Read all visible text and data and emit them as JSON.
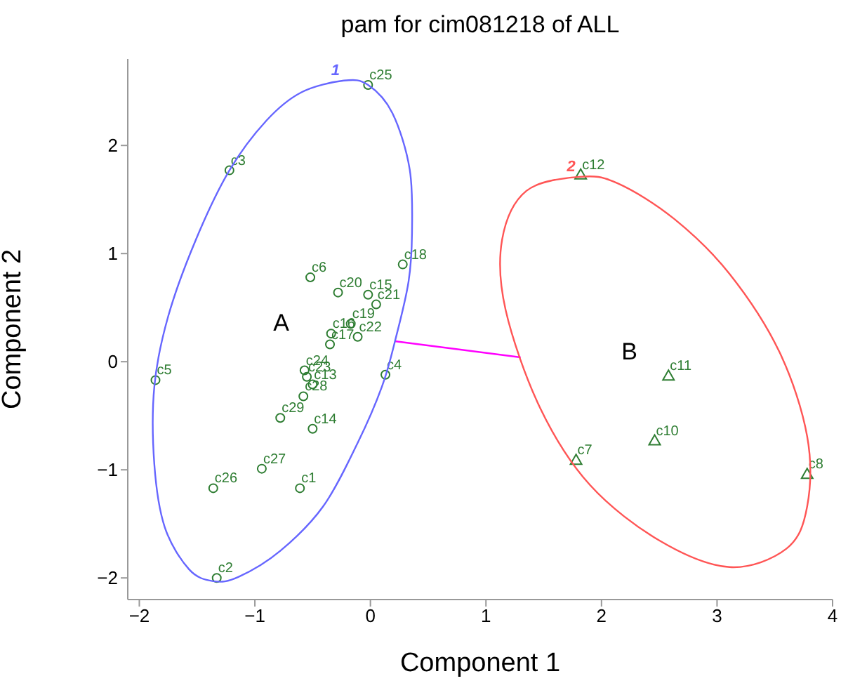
{
  "chart_data": {
    "type": "scatter",
    "title": "pam for cim081218 of ALL",
    "xlabel": "Component 1",
    "ylabel": "Component 2",
    "xlim": [
      -2.1,
      4.0
    ],
    "ylim": [
      -2.2,
      2.8
    ],
    "xticks": [
      -2,
      -1,
      0,
      1,
      2,
      3,
      4
    ],
    "yticks": [
      -2,
      -1,
      0,
      1,
      2
    ],
    "grid": false,
    "legend": false,
    "annotations": [
      "A",
      "B",
      "1",
      "2"
    ],
    "series": [
      {
        "marker": "circle",
        "color": "#2e7d32",
        "x": [
          -0.02,
          -1.22,
          0.28,
          -0.52,
          -0.28,
          -0.02,
          0.05,
          -0.17,
          -0.11,
          -0.34,
          -0.35,
          0.13,
          -1.86,
          -0.57,
          -0.55,
          -0.5,
          -0.58,
          -0.78,
          -0.5,
          -0.94,
          -1.36,
          -0.61,
          -1.33
        ],
        "values": [
          2.56,
          1.77,
          0.9,
          0.78,
          0.64,
          0.62,
          0.53,
          0.35,
          0.23,
          0.26,
          0.16,
          -0.12,
          -0.17,
          -0.08,
          -0.14,
          -0.21,
          -0.32,
          -0.52,
          -0.62,
          -0.99,
          -1.17,
          -1.17,
          -2.0
        ],
        "value_labels": [
          "c25",
          "c3",
          "c18",
          "c6",
          "c20",
          "c15",
          "c21",
          "c19",
          "c22",
          "c16",
          "c17",
          "c4",
          "c5",
          "c24",
          "c23",
          "c13",
          "c28",
          "c29",
          "c14",
          "c27",
          "c26",
          "c1",
          "c2"
        ]
      },
      {
        "marker": "triangle",
        "color": "#2e7d32",
        "x": [
          1.82,
          2.58,
          2.46,
          1.78,
          3.78
        ],
        "values": [
          1.73,
          -0.13,
          -0.73,
          -0.91,
          -1.04
        ],
        "value_labels": [
          "c12",
          "c11",
          "c10",
          "c7",
          "c8"
        ]
      },
      {
        "type": "line",
        "color": "#ff00ff",
        "x": [
          0.21,
          1.3
        ],
        "values": [
          0.19,
          0.04
        ]
      }
    ]
  }
}
